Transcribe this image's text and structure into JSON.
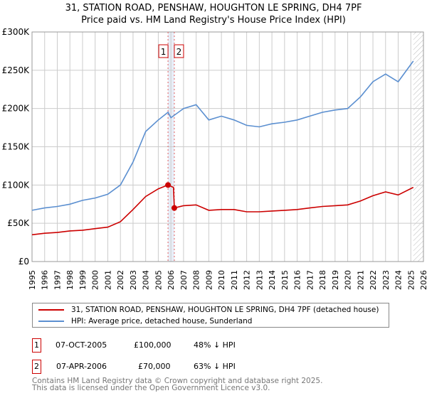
{
  "chart_data": {
    "type": "line",
    "title": "31, STATION ROAD, PENSHAW, HOUGHTON LE SPRING, DH4 7PF",
    "subtitle": "Price paid vs. HM Land Registry's House Price Index (HPI)",
    "xlim": [
      1995,
      2026
    ],
    "ylim": [
      0,
      300000
    ],
    "x_ticks": [
      "1995",
      "1996",
      "1997",
      "1998",
      "1999",
      "2000",
      "2001",
      "2002",
      "2003",
      "2004",
      "2005",
      "2006",
      "2007",
      "2008",
      "2009",
      "2010",
      "2011",
      "2012",
      "2013",
      "2014",
      "2015",
      "2016",
      "2017",
      "2018",
      "2019",
      "2020",
      "2021",
      "2022",
      "2023",
      "2024",
      "2025",
      "2026"
    ],
    "y_ticks": [
      {
        "v": 0,
        "label": "£0"
      },
      {
        "v": 50000,
        "label": "£50K"
      },
      {
        "v": 100000,
        "label": "£100K"
      },
      {
        "v": 150000,
        "label": "£150K"
      },
      {
        "v": 200000,
        "label": "£200K"
      },
      {
        "v": 250000,
        "label": "£250K"
      },
      {
        "v": 300000,
        "label": "£300K"
      }
    ],
    "grid": true,
    "series": [
      {
        "name": "31, STATION ROAD, PENSHAW, HOUGHTON LE SPRING, DH4 7PF (detached house)",
        "color": "#cc0000",
        "x": [
          1995,
          1996,
          1997,
          1998,
          1999,
          2000,
          2001,
          2002,
          2003,
          2004,
          2005,
          2005.77,
          2006.2,
          2006.27,
          2007,
          2008,
          2009,
          2010,
          2011,
          2012,
          2013,
          2014,
          2015,
          2016,
          2017,
          2018,
          2019,
          2020,
          2021,
          2022,
          2023,
          2024,
          2025.2
        ],
        "y": [
          35000,
          37000,
          38000,
          40000,
          41000,
          43000,
          45000,
          52000,
          68000,
          85000,
          95000,
          100000,
          97000,
          70000,
          73000,
          74000,
          67000,
          68000,
          68000,
          65000,
          65000,
          66000,
          67000,
          68000,
          70000,
          72000,
          73000,
          74000,
          79000,
          86000,
          91000,
          87000,
          97000
        ]
      },
      {
        "name": "HPI: Average price, detached house, Sunderland",
        "color": "#5b8fd0",
        "x": [
          1995,
          1996,
          1997,
          1998,
          1999,
          2000,
          2001,
          2002,
          2003,
          2004,
          2005,
          2005.77,
          2006,
          2007,
          2008,
          2009,
          2010,
          2011,
          2012,
          2013,
          2014,
          2015,
          2016,
          2017,
          2018,
          2019,
          2020,
          2021,
          2022,
          2023,
          2024,
          2025.2
        ],
        "y": [
          67000,
          70000,
          72000,
          75000,
          80000,
          83000,
          88000,
          100000,
          130000,
          170000,
          185000,
          195000,
          188000,
          200000,
          205000,
          185000,
          190000,
          185000,
          178000,
          176000,
          180000,
          182000,
          185000,
          190000,
          195000,
          198000,
          200000,
          215000,
          235000,
          245000,
          235000,
          262000
        ]
      }
    ],
    "markers": [
      {
        "label": "1",
        "x": 2005.77,
        "y": 100000
      },
      {
        "label": "2",
        "x": 2006.27,
        "y": 70000
      }
    ],
    "hatch_from": 2025.2,
    "legend_placement": "bottom"
  },
  "table": [
    {
      "num": "1",
      "date": "07-OCT-2005",
      "price": "£100,000",
      "hpi": "48% ↓ HPI"
    },
    {
      "num": "2",
      "date": "07-APR-2006",
      "price": "£70,000",
      "hpi": "63% ↓ HPI"
    }
  ],
  "footer": {
    "line1": "Contains HM Land Registry data © Crown copyright and database right 2025.",
    "line2": "This data is licensed under the Open Government Licence v3.0."
  }
}
